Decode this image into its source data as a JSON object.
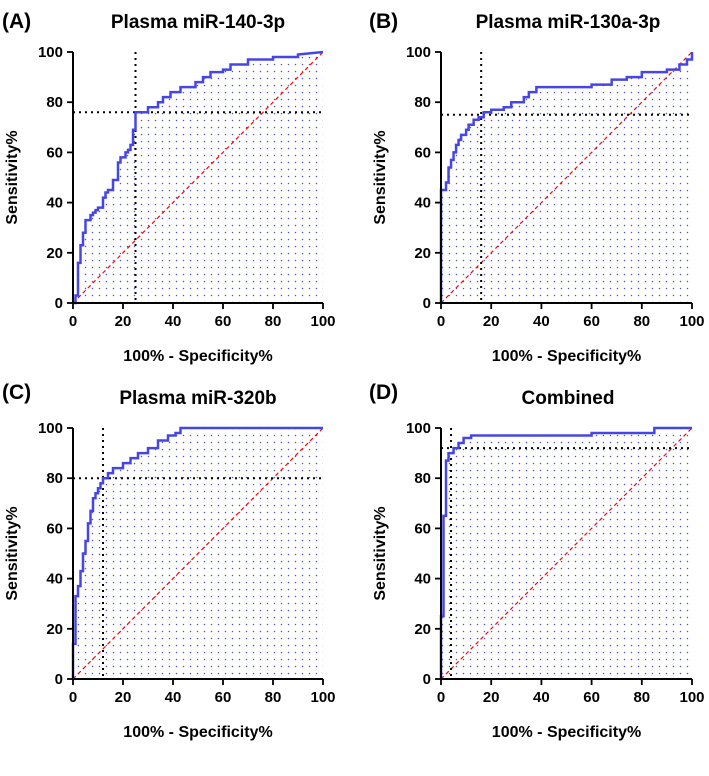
{
  "chart_data": [
    {
      "type": "line",
      "panel_label": "(A)",
      "title": "Plasma miR-140-3p",
      "xlabel": "100% - Specificity%",
      "ylabel": "Sensitivity%",
      "xlim": [
        0,
        100
      ],
      "ylim": [
        0,
        100
      ],
      "xticks": [
        "0",
        "20",
        "40",
        "60",
        "80",
        "100"
      ],
      "yticks": [
        "0",
        "20",
        "40",
        "60",
        "80",
        "100"
      ],
      "cutoff": {
        "x": 25,
        "y": 76
      },
      "series": [
        {
          "name": "ROC",
          "color": "#4646e6",
          "x": [
            0,
            1,
            1,
            2,
            2,
            3,
            3,
            4,
            4,
            5,
            5,
            7,
            7,
            8,
            8,
            9,
            9,
            10,
            10,
            12,
            12,
            13,
            13,
            14,
            14,
            16,
            16,
            18,
            18,
            19,
            19,
            21,
            21,
            22,
            22,
            23,
            23,
            24,
            24,
            25,
            25,
            30,
            30,
            34,
            34,
            36,
            36,
            39,
            39,
            43,
            43,
            49,
            49,
            52,
            52,
            55,
            55,
            60,
            60,
            63,
            63,
            70,
            70,
            80,
            80,
            90,
            90,
            100
          ],
          "y": [
            0,
            0,
            3,
            3,
            16,
            16,
            23,
            23,
            28,
            28,
            33,
            33,
            35,
            35,
            36,
            36,
            37,
            37,
            38,
            38,
            42,
            42,
            44,
            44,
            45,
            45,
            49,
            49,
            56,
            56,
            58,
            58,
            60,
            60,
            61,
            61,
            63,
            63,
            69,
            69,
            76,
            76,
            78,
            78,
            80,
            80,
            82,
            82,
            84,
            84,
            86,
            86,
            88,
            88,
            90,
            90,
            92,
            92,
            93,
            93,
            95,
            95,
            97,
            97,
            98,
            98,
            99,
            100
          ]
        },
        {
          "name": "Reference",
          "color": "#ff0000",
          "x": [
            0,
            100
          ],
          "y": [
            0,
            100
          ]
        }
      ]
    },
    {
      "type": "line",
      "panel_label": "(B)",
      "title": "Plasma miR-130a-3p",
      "xlabel": "100% - Specificity%",
      "ylabel": "Sensitivity%",
      "xlim": [
        0,
        100
      ],
      "ylim": [
        0,
        100
      ],
      "xticks": [
        "0",
        "20",
        "40",
        "60",
        "80",
        "100"
      ],
      "yticks": [
        "0",
        "20",
        "40",
        "60",
        "80",
        "100"
      ],
      "cutoff": {
        "x": 16,
        "y": 75
      },
      "series": [
        {
          "name": "ROC",
          "color": "#4646e6",
          "x": [
            0,
            0,
            2,
            2,
            3,
            3,
            4,
            4,
            5,
            5,
            6,
            6,
            7,
            7,
            8,
            8,
            10,
            10,
            11,
            11,
            13,
            13,
            15,
            15,
            17,
            17,
            20,
            20,
            25,
            25,
            28,
            28,
            33,
            33,
            35,
            35,
            38,
            38,
            60,
            60,
            68,
            68,
            74,
            74,
            80,
            80,
            90,
            90,
            95,
            95,
            98,
            98,
            100,
            100
          ],
          "y": [
            0,
            45,
            45,
            48,
            48,
            54,
            54,
            57,
            57,
            60,
            60,
            63,
            63,
            65,
            65,
            67,
            67,
            69,
            69,
            71,
            71,
            73,
            73,
            74,
            74,
            76,
            76,
            77,
            77,
            78,
            78,
            80,
            80,
            82,
            82,
            84,
            84,
            86,
            86,
            87,
            87,
            89,
            89,
            90,
            90,
            92,
            92,
            93,
            93,
            95,
            95,
            97,
            97,
            100
          ]
        },
        {
          "name": "Reference",
          "color": "#ff0000",
          "x": [
            0,
            100
          ],
          "y": [
            0,
            100
          ]
        }
      ]
    },
    {
      "type": "line",
      "panel_label": "(C)",
      "title": "Plasma miR-320b",
      "xlabel": "100% - Specificity%",
      "ylabel": "Sensitivity%",
      "xlim": [
        0,
        100
      ],
      "ylim": [
        0,
        100
      ],
      "xticks": [
        "0",
        "20",
        "40",
        "60",
        "80",
        "100"
      ],
      "yticks": [
        "0",
        "20",
        "40",
        "60",
        "80",
        "100"
      ],
      "cutoff": {
        "x": 12,
        "y": 80
      },
      "series": [
        {
          "name": "ROC",
          "color": "#4646e6",
          "x": [
            0,
            0,
            1,
            1,
            2,
            2,
            3,
            3,
            4,
            4,
            5,
            5,
            6,
            6,
            7,
            7,
            8,
            8,
            9,
            9,
            10,
            10,
            11,
            11,
            12,
            12,
            14,
            14,
            16,
            16,
            20,
            20,
            23,
            23,
            26,
            26,
            30,
            30,
            34,
            34,
            38,
            38,
            41,
            41,
            43,
            43,
            100
          ],
          "y": [
            0,
            14,
            14,
            33,
            33,
            37,
            37,
            43,
            43,
            50,
            50,
            55,
            55,
            62,
            62,
            67,
            67,
            72,
            72,
            74,
            74,
            76,
            76,
            78,
            78,
            80,
            80,
            82,
            82,
            84,
            84,
            86,
            86,
            88,
            88,
            90,
            90,
            92,
            92,
            95,
            95,
            97,
            97,
            98,
            98,
            100,
            100
          ]
        },
        {
          "name": "Reference",
          "color": "#ff0000",
          "x": [
            0,
            100
          ],
          "y": [
            0,
            100
          ]
        }
      ]
    },
    {
      "type": "line",
      "panel_label": "(D)",
      "title": "Combined",
      "xlabel": "100% - Specificity%",
      "ylabel": "Sensitivity%",
      "xlim": [
        0,
        100
      ],
      "ylim": [
        0,
        100
      ],
      "xticks": [
        "0",
        "20",
        "40",
        "60",
        "80",
        "100"
      ],
      "yticks": [
        "0",
        "20",
        "40",
        "60",
        "80",
        "100"
      ],
      "cutoff": {
        "x": 4,
        "y": 92
      },
      "series": [
        {
          "name": "ROC",
          "color": "#4646e6",
          "x": [
            0,
            0,
            1,
            1,
            2,
            2,
            3,
            3,
            5,
            5,
            7,
            7,
            9,
            9,
            12,
            12,
            60,
            60,
            85,
            85,
            100
          ],
          "y": [
            0,
            25,
            25,
            65,
            65,
            87,
            87,
            90,
            90,
            92,
            92,
            94,
            94,
            96,
            96,
            97,
            97,
            98,
            98,
            100,
            100
          ]
        },
        {
          "name": "Reference",
          "color": "#ff0000",
          "x": [
            0,
            100
          ],
          "y": [
            0,
            100
          ]
        }
      ]
    }
  ]
}
